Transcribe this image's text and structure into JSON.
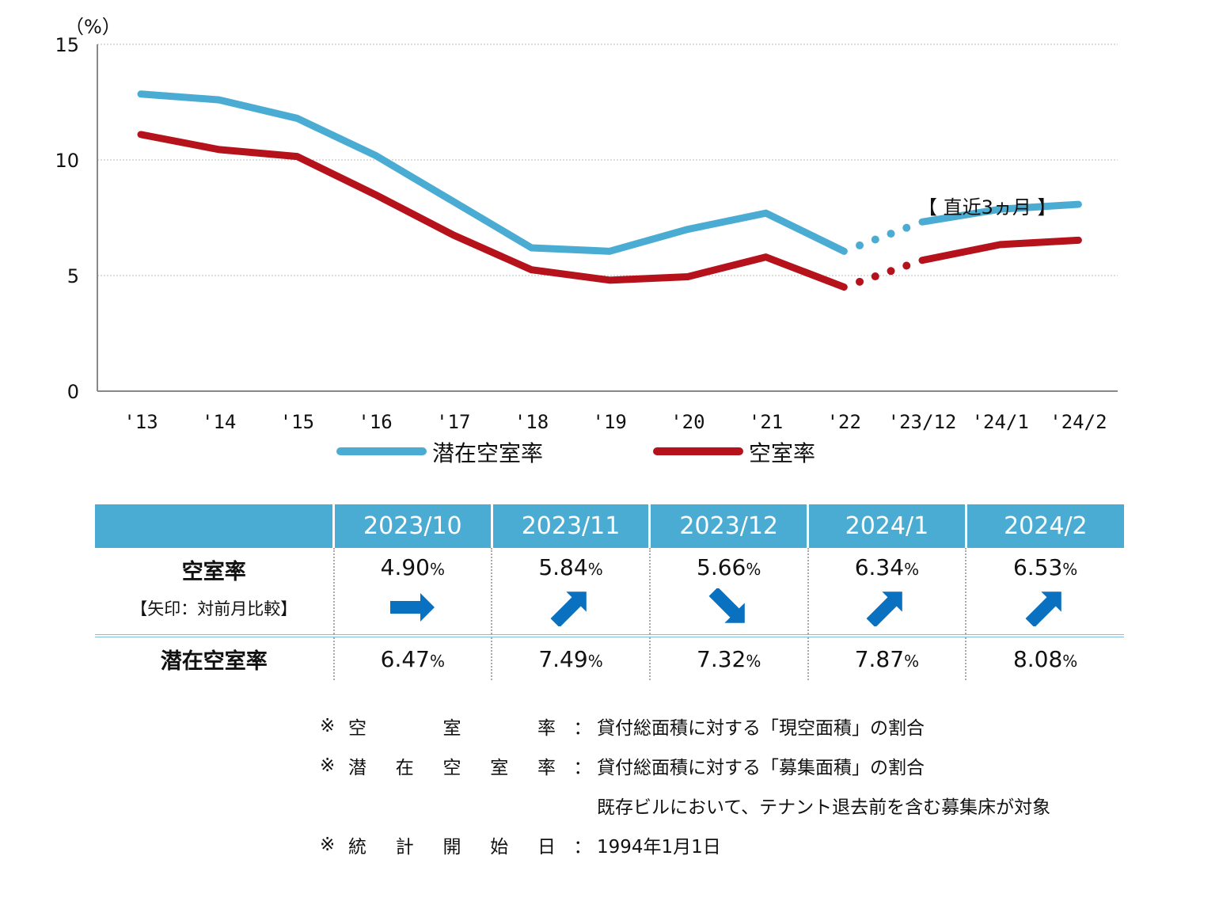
{
  "chart_data": {
    "type": "line",
    "unit_label": "（%）",
    "categories": [
      "'13",
      "'14",
      "'15",
      "'16",
      "'17",
      "'18",
      "'19",
      "'20",
      "'21",
      "'22",
      "'23/12",
      "'24/1",
      "'24/2"
    ],
    "ylim": [
      0,
      15
    ],
    "yticks": [
      0,
      5,
      10,
      15
    ],
    "grid": true,
    "series": [
      {
        "name": "潜在空室率",
        "color": "#4bacd3",
        "values": [
          12.85,
          12.6,
          11.8,
          10.2,
          8.2,
          6.2,
          6.05,
          7.0,
          7.7,
          6.05,
          7.32,
          7.87,
          8.08
        ]
      },
      {
        "name": "空室率",
        "color": "#b5121b",
        "values": [
          11.1,
          10.45,
          10.15,
          8.5,
          6.75,
          5.25,
          4.8,
          4.95,
          5.8,
          4.5,
          5.66,
          6.34,
          6.53
        ]
      }
    ],
    "gap_dotted_between": [
      9,
      10
    ],
    "annotation": "【 直近3ヵ月 】"
  },
  "table": {
    "headers": [
      "2023/10",
      "2023/11",
      "2023/12",
      "2024/1",
      "2024/2"
    ],
    "vacancy": {
      "label": "空室率",
      "sublabel": "【矢印：対前月比較】",
      "values": [
        "4.90",
        "5.84",
        "5.66",
        "6.34",
        "6.53"
      ],
      "arrows": [
        "right",
        "up",
        "down",
        "up",
        "up"
      ],
      "arrow_color": "#0a70c0"
    },
    "potential": {
      "label": "潜在空室率",
      "values": [
        "6.47",
        "7.49",
        "7.32",
        "7.87",
        "8.08"
      ]
    },
    "pct_sign": "%"
  },
  "notes": [
    {
      "mark": "※",
      "label": "空室率",
      "text": "貸付総面積に対する「現空面積」の割合"
    },
    {
      "mark": "※",
      "label": "潜在空室率",
      "text": "貸付総面積に対する「募集面積」の割合"
    },
    {
      "mark": "",
      "label": "",
      "text": "既存ビルにおいて、テナント退去前を含む募集床が対象"
    },
    {
      "mark": "※",
      "label": "統計開始日",
      "text": "1994年1月1日"
    }
  ]
}
